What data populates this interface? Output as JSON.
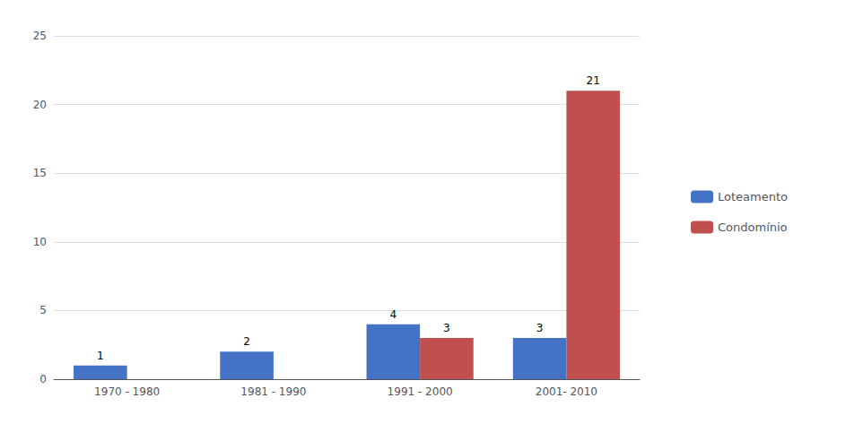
{
  "chart_data": {
    "type": "bar",
    "categories": [
      "1970 - 1980",
      "1981 - 1990",
      "1991 - 2000",
      "2001- 2010"
    ],
    "series": [
      {
        "name": "Loteamento",
        "color": "#4472C4",
        "values": [
          1,
          2,
          4,
          3
        ]
      },
      {
        "name": "Condomínio",
        "color": "#C0504D",
        "values": [
          0,
          0,
          3,
          21
        ],
        "value_labels": [
          null,
          null,
          "3",
          "21"
        ]
      }
    ],
    "ylim": [
      0,
      25
    ],
    "yticks": [
      0,
      5,
      10,
      15,
      20,
      25
    ],
    "grid": true,
    "legend": "right",
    "data_labels": true
  }
}
